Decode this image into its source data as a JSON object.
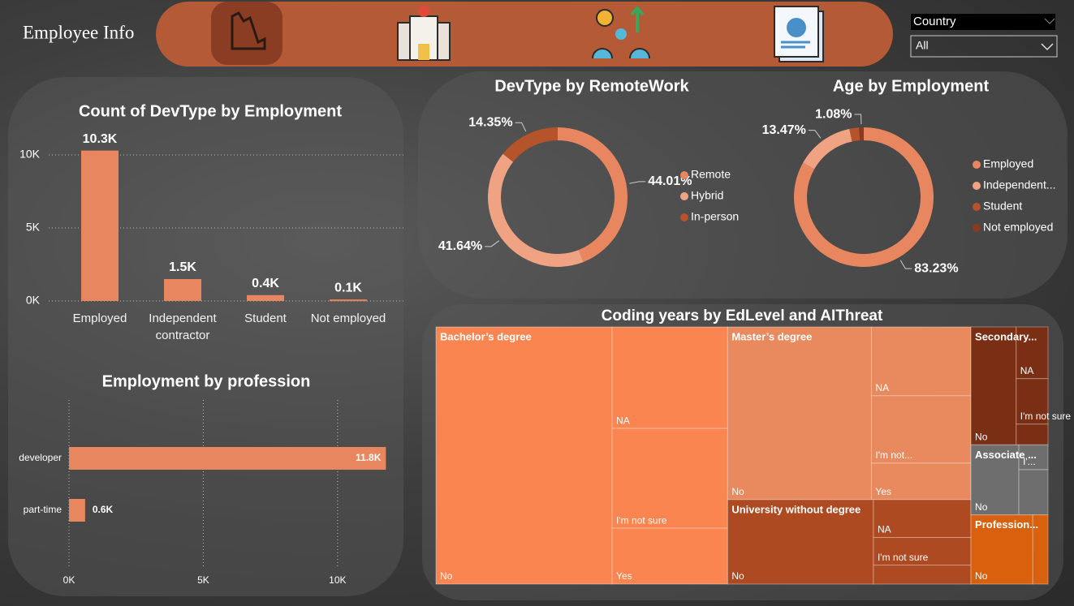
{
  "header": {
    "title": "Employee Info",
    "slicer_label": "Country",
    "slicer_value": "All"
  },
  "chart_data": [
    {
      "type": "bar",
      "title": "Count of DevType by Employment",
      "categories": [
        "Employed",
        "Independent contractor",
        "Student",
        "Not employed"
      ],
      "values": [
        10300,
        1500,
        400,
        100
      ],
      "value_labels": [
        "10.3K",
        "1.5K",
        "0.4K",
        "0.1K"
      ],
      "color": "#e8875f",
      "ylim": [
        0,
        11000
      ],
      "yticks": [
        {
          "value": 0,
          "label": "0K"
        },
        {
          "value": 5000,
          "label": "5K"
        },
        {
          "value": 10000,
          "label": "10K"
        }
      ],
      "grid": true
    },
    {
      "type": "bar",
      "horizontal": true,
      "title": "Employment by profession",
      "categories": [
        "developer",
        "part-time"
      ],
      "values": [
        11800,
        600
      ],
      "value_labels": [
        "11.8K",
        "0.6K"
      ],
      "color": "#e8875f",
      "xlim": [
        0,
        12000
      ],
      "xticks": [
        {
          "value": 0,
          "label": "0K"
        },
        {
          "value": 5000,
          "label": "5K"
        },
        {
          "value": 10000,
          "label": "10K"
        }
      ],
      "grid": true
    },
    {
      "type": "donut",
      "title": "DevType by RemoteWork",
      "categories": [
        "Remote",
        "Hybrid",
        "In-person"
      ],
      "values": [
        44.01,
        41.64,
        14.35
      ],
      "value_labels": [
        "44.01%",
        "41.64%",
        "14.35%"
      ],
      "colors": [
        "#e8875f",
        "#f0a383",
        "#b5532a"
      ]
    },
    {
      "type": "donut",
      "title": "Age by Employment",
      "categories": [
        "Employed",
        "Independent...",
        "Student",
        "Not employed"
      ],
      "values": [
        83.23,
        13.47,
        2.22,
        1.08
      ],
      "value_labels": [
        "83.23%",
        "13.47%",
        null,
        "1.08%"
      ],
      "colors": [
        "#e8875f",
        "#f0a383",
        "#b5532a",
        "#8a3a1f"
      ]
    },
    {
      "type": "treemap",
      "title": "Coding years by EdLevel and AIThreat",
      "groups": [
        {
          "name": "Bachelor’s degree",
          "color": "#fa8550",
          "children": [
            {
              "name": "No",
              "value": 68.8
            },
            {
              "name": "NA",
              "value": 17.8
            },
            {
              "name": "I'm not sure",
              "value": 17.5
            },
            {
              "name": "Yes",
              "value": 9.8
            }
          ]
        },
        {
          "name": "Master’s degree",
          "color": "#e8895e",
          "children": [
            {
              "name": "No",
              "value": 37.7
            },
            {
              "name": "NA",
              "value": 10.4
            },
            {
              "name": "I'm not...",
              "value": 10.2
            },
            {
              "name": "Yes",
              "value": 5.5
            }
          ]
        },
        {
          "name": "University without degree",
          "color": "#ad4a22",
          "children": [
            {
              "name": "No",
              "value": 18.7
            },
            {
              "name": "NA",
              "value": 5.6
            },
            {
              "name": "I'm not sure",
              "value": 4.1
            },
            {
              "name": null,
              "value": 2.8
            }
          ]
        },
        {
          "name": "Secondary...",
          "color": "#7a2e14",
          "children": [
            {
              "name": "No",
              "value": 8.1
            },
            {
              "name": "NA",
              "value": 2.5
            },
            {
              "name": "I'm not sure",
              "value": 2.2
            },
            {
              "name": null,
              "value": 1.0
            }
          ]
        },
        {
          "name": "Associate ...",
          "color": "#6e6e6e",
          "children": [
            {
              "name": "No",
              "value": 5.1
            },
            {
              "name": "I'...",
              "value": 1.1
            },
            {
              "name": null,
              "value": 2.0
            }
          ]
        },
        {
          "name": "Profession...",
          "color": "#d9600c",
          "children": [
            {
              "name": "No",
              "value": 6.5
            },
            {
              "name": null,
              "value": 1.6
            }
          ]
        }
      ]
    }
  ]
}
